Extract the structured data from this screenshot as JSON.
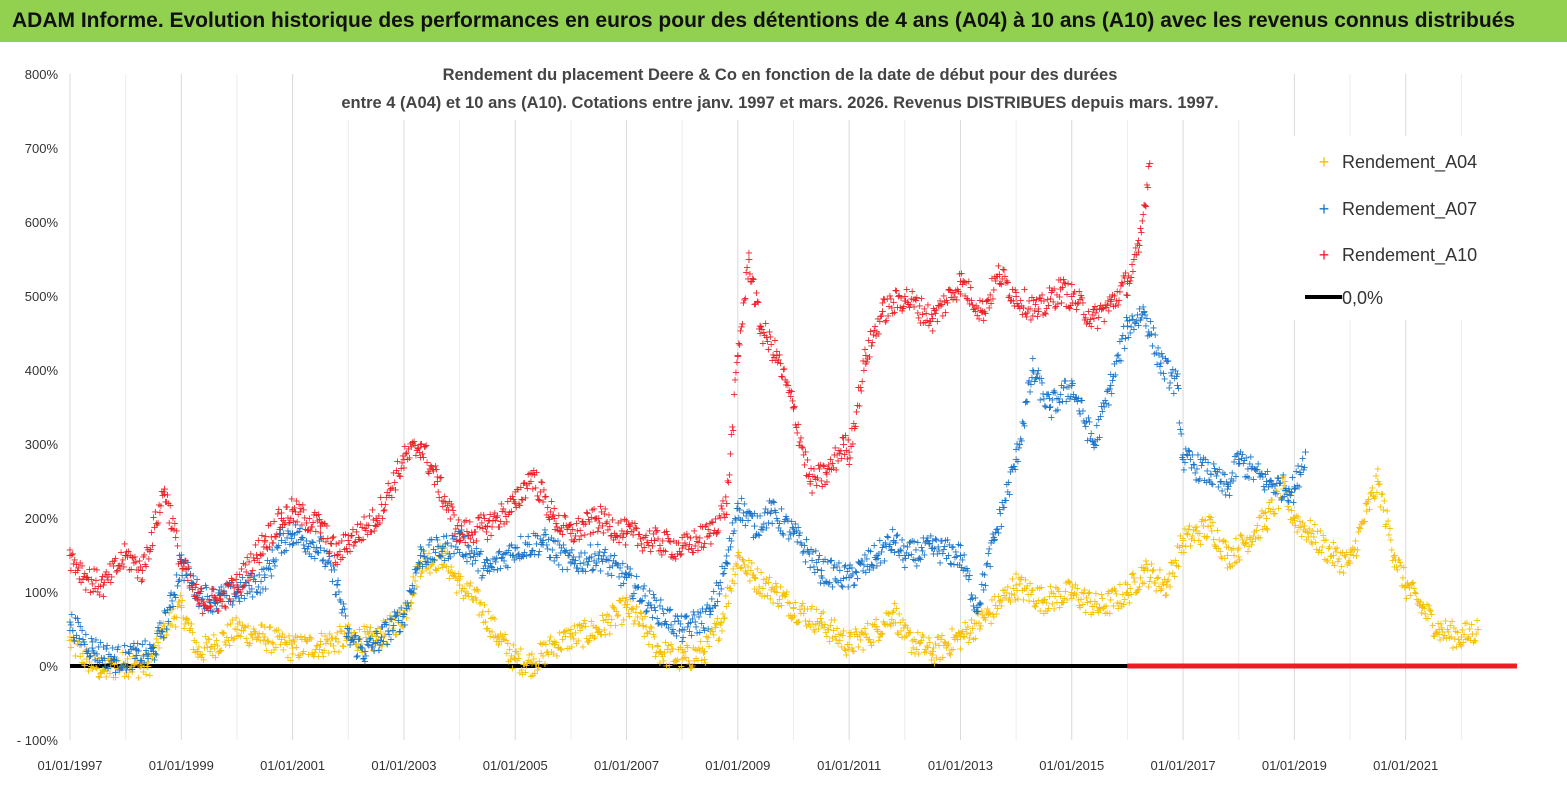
{
  "header": {
    "title": "ADAM Informe. Evolution historique des performances en euros pour des détentions de 4 ans (A04) à 10 ans (A10) avec les revenus connus distribués"
  },
  "colors": {
    "banner": "#92d050",
    "a04": "#f5c000",
    "a07": "#1874c8",
    "a10": "#ee1c24",
    "zero": "#000000"
  },
  "chart_data": {
    "type": "scatter",
    "title": "Rendement du placement Deere & Co en fonction de la date de début pour des durées entre 4 (A04) et 10 ans (A10). Cotations entre janv. 1997 et mars. 2026. Revenus DISTRIBUES depuis mars. 1997.",
    "title_lines": [
      "Rendement du placement Deere & Co en fonction de la date de début pour des durées",
      "entre 4 (A04) et 10 ans (A10). Cotations entre janv. 1997 et mars. 2026. Revenus DISTRIBUES depuis mars. 1997."
    ],
    "xlabel": "",
    "ylabel": "",
    "x_range": [
      "01/01/1997",
      "01/01/2023"
    ],
    "x_tick_labels": [
      "01/01/1997",
      "01/01/1999",
      "01/01/2001",
      "01/01/2003",
      "01/01/2005",
      "01/01/2007",
      "01/01/2009",
      "01/01/2011",
      "01/01/2013",
      "01/01/2015",
      "01/01/2017",
      "01/01/2019",
      "01/01/2021"
    ],
    "x_tick_years": [
      1997,
      1999,
      2001,
      2003,
      2005,
      2007,
      2009,
      2011,
      2013,
      2015,
      2017,
      2019,
      2021
    ],
    "y_range_percent": [
      -100,
      800
    ],
    "y_tick_labels": [
      "- 100%",
      "0%",
      "100%",
      "200%",
      "300%",
      "400%",
      "500%",
      "600%",
      "700%",
      "800%"
    ],
    "y_tick_values": [
      -100,
      0,
      100,
      200,
      300,
      400,
      500,
      600,
      700,
      800
    ],
    "grid": {
      "vertical": true,
      "horizontal": false
    },
    "legend_position": "top-right",
    "series": [
      {
        "name": "Rendement_A04",
        "color": "#f5c000",
        "marker": "+",
        "points": [
          [
            1997.0,
            35
          ],
          [
            1997.3,
            10
          ],
          [
            1997.6,
            -5
          ],
          [
            1998.0,
            5
          ],
          [
            1998.4,
            0
          ],
          [
            1998.7,
            55
          ],
          [
            1999.0,
            80
          ],
          [
            1999.3,
            20
          ],
          [
            1999.6,
            30
          ],
          [
            2000.0,
            50
          ],
          [
            2000.5,
            40
          ],
          [
            2001.0,
            25
          ],
          [
            2001.5,
            30
          ],
          [
            2002.0,
            40
          ],
          [
            2002.5,
            35
          ],
          [
            2003.0,
            70
          ],
          [
            2003.3,
            140
          ],
          [
            2003.7,
            150
          ],
          [
            2004.0,
            110
          ],
          [
            2004.3,
            90
          ],
          [
            2004.7,
            40
          ],
          [
            2005.0,
            10
          ],
          [
            2005.3,
            5
          ],
          [
            2005.7,
            30
          ],
          [
            2006.0,
            40
          ],
          [
            2006.5,
            50
          ],
          [
            2007.0,
            80
          ],
          [
            2007.3,
            55
          ],
          [
            2007.6,
            20
          ],
          [
            2008.0,
            10
          ],
          [
            2008.4,
            20
          ],
          [
            2008.7,
            60
          ],
          [
            2009.0,
            150
          ],
          [
            2009.3,
            120
          ],
          [
            2009.7,
            100
          ],
          [
            2010.0,
            80
          ],
          [
            2010.5,
            60
          ],
          [
            2011.0,
            30
          ],
          [
            2011.5,
            50
          ],
          [
            2011.8,
            75
          ],
          [
            2012.0,
            40
          ],
          [
            2012.5,
            20
          ],
          [
            2013.0,
            40
          ],
          [
            2013.5,
            70
          ],
          [
            2014.0,
            110
          ],
          [
            2014.5,
            90
          ],
          [
            2015.0,
            100
          ],
          [
            2015.5,
            80
          ],
          [
            2016.0,
            100
          ],
          [
            2016.3,
            130
          ],
          [
            2016.7,
            110
          ],
          [
            2017.0,
            170
          ],
          [
            2017.5,
            190
          ],
          [
            2017.8,
            150
          ],
          [
            2018.0,
            160
          ],
          [
            2018.5,
            200
          ],
          [
            2018.8,
            240
          ],
          [
            2019.0,
            200
          ],
          [
            2019.3,
            180
          ],
          [
            2019.7,
            150
          ],
          [
            2020.0,
            140
          ],
          [
            2020.3,
            210
          ],
          [
            2020.5,
            250
          ],
          [
            2020.8,
            150
          ],
          [
            2021.0,
            110
          ],
          [
            2021.3,
            80
          ],
          [
            2021.6,
            50
          ],
          [
            2022.0,
            40
          ],
          [
            2022.3,
            50
          ]
        ]
      },
      {
        "name": "Rendement_A07",
        "color": "#1874c8",
        "marker": "+",
        "points": [
          [
            1997.0,
            60
          ],
          [
            1997.4,
            25
          ],
          [
            1997.8,
            10
          ],
          [
            1998.2,
            15
          ],
          [
            1998.5,
            20
          ],
          [
            1998.8,
            80
          ],
          [
            1999.0,
            140
          ],
          [
            1999.3,
            100
          ],
          [
            1999.6,
            90
          ],
          [
            2000.0,
            100
          ],
          [
            2000.5,
            120
          ],
          [
            2000.8,
            170
          ],
          [
            2001.0,
            180
          ],
          [
            2001.5,
            160
          ],
          [
            2001.8,
            110
          ],
          [
            2002.0,
            40
          ],
          [
            2002.3,
            20
          ],
          [
            2002.6,
            40
          ],
          [
            2003.0,
            70
          ],
          [
            2003.3,
            150
          ],
          [
            2003.7,
            160
          ],
          [
            2004.0,
            170
          ],
          [
            2004.5,
            130
          ],
          [
            2005.0,
            160
          ],
          [
            2005.5,
            170
          ],
          [
            2006.0,
            140
          ],
          [
            2006.5,
            150
          ],
          [
            2007.0,
            120
          ],
          [
            2007.5,
            80
          ],
          [
            2008.0,
            50
          ],
          [
            2008.5,
            70
          ],
          [
            2008.8,
            140
          ],
          [
            2009.0,
            220
          ],
          [
            2009.3,
            190
          ],
          [
            2009.6,
            210
          ],
          [
            2010.0,
            180
          ],
          [
            2010.5,
            130
          ],
          [
            2011.0,
            120
          ],
          [
            2011.5,
            150
          ],
          [
            2011.8,
            170
          ],
          [
            2012.0,
            150
          ],
          [
            2012.5,
            160
          ],
          [
            2013.0,
            150
          ],
          [
            2013.3,
            80
          ],
          [
            2013.6,
            170
          ],
          [
            2014.0,
            280
          ],
          [
            2014.3,
            400
          ],
          [
            2014.6,
            350
          ],
          [
            2015.0,
            380
          ],
          [
            2015.4,
            300
          ],
          [
            2015.7,
            380
          ],
          [
            2016.0,
            460
          ],
          [
            2016.3,
            480
          ],
          [
            2016.6,
            410
          ],
          [
            2016.9,
            380
          ],
          [
            2017.0,
            280
          ],
          [
            2017.5,
            260
          ],
          [
            2017.8,
            240
          ],
          [
            2018.0,
            280
          ],
          [
            2018.5,
            250
          ],
          [
            2018.9,
            240
          ],
          [
            2019.0,
            240
          ],
          [
            2019.2,
            290
          ]
        ]
      },
      {
        "name": "Rendement_A10",
        "color": "#ee1c24",
        "marker": "+",
        "points": [
          [
            1997.0,
            150
          ],
          [
            1997.3,
            120
          ],
          [
            1997.6,
            110
          ],
          [
            1998.0,
            150
          ],
          [
            1998.3,
            130
          ],
          [
            1998.7,
            240
          ],
          [
            1999.0,
            140
          ],
          [
            1999.3,
            90
          ],
          [
            1999.7,
            90
          ],
          [
            2000.0,
            110
          ],
          [
            2000.5,
            170
          ],
          [
            2000.8,
            200
          ],
          [
            2001.0,
            210
          ],
          [
            2001.5,
            190
          ],
          [
            2001.8,
            150
          ],
          [
            2002.0,
            170
          ],
          [
            2002.5,
            200
          ],
          [
            2003.0,
            280
          ],
          [
            2003.3,
            300
          ],
          [
            2003.6,
            250
          ],
          [
            2004.0,
            180
          ],
          [
            2004.5,
            190
          ],
          [
            2005.0,
            220
          ],
          [
            2005.3,
            260
          ],
          [
            2005.7,
            200
          ],
          [
            2006.0,
            180
          ],
          [
            2006.5,
            200
          ],
          [
            2007.0,
            180
          ],
          [
            2007.5,
            170
          ],
          [
            2008.0,
            160
          ],
          [
            2008.5,
            180
          ],
          [
            2008.8,
            220
          ],
          [
            2009.0,
            420
          ],
          [
            2009.2,
            550
          ],
          [
            2009.4,
            460
          ],
          [
            2009.7,
            420
          ],
          [
            2010.0,
            350
          ],
          [
            2010.3,
            250
          ],
          [
            2010.6,
            260
          ],
          [
            2010.9,
            300
          ],
          [
            2011.0,
            290
          ],
          [
            2011.3,
            420
          ],
          [
            2011.6,
            480
          ],
          [
            2012.0,
            500
          ],
          [
            2012.5,
            470
          ],
          [
            2013.0,
            520
          ],
          [
            2013.4,
            480
          ],
          [
            2013.7,
            530
          ],
          [
            2014.0,
            500
          ],
          [
            2014.4,
            480
          ],
          [
            2014.8,
            510
          ],
          [
            2015.0,
            500
          ],
          [
            2015.4,
            470
          ],
          [
            2015.7,
            490
          ],
          [
            2016.0,
            520
          ],
          [
            2016.2,
            560
          ],
          [
            2016.4,
            680
          ]
        ]
      },
      {
        "name": "0,0%",
        "color": "#000000",
        "type": "line",
        "points": [
          [
            1997.0,
            0
          ],
          [
            2016.0,
            0
          ]
        ]
      }
    ]
  }
}
